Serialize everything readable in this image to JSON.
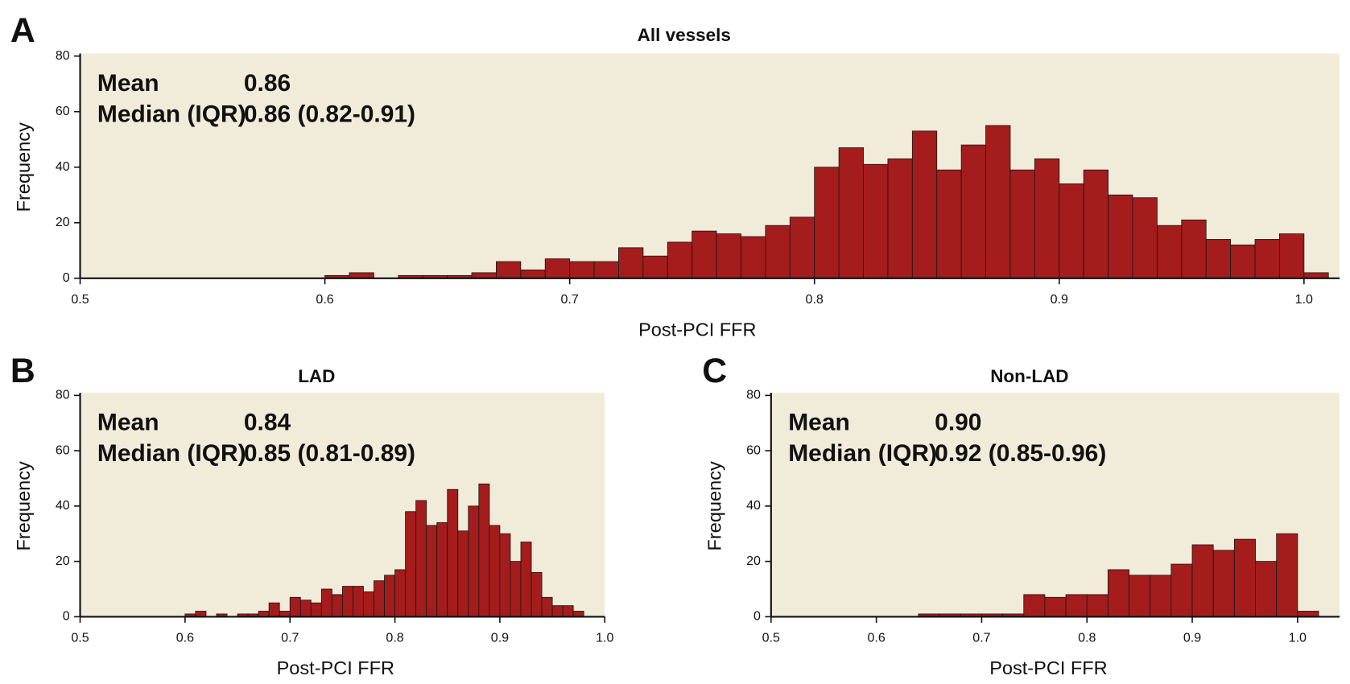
{
  "chart_data": [
    {
      "type": "histogram",
      "panel": "A",
      "title": "All vessels",
      "xlabel": "Post-PCI FFR",
      "ylabel": "Frequency",
      "stats": [
        [
          "Mean",
          "0.86"
        ],
        [
          "Median (IQR)",
          "0.86 (0.82-0.91)"
        ]
      ],
      "color": "#a51c1c",
      "background": "#f1ecd9",
      "bins": [
        0.6,
        0.61,
        0.62,
        0.63,
        0.64,
        0.65,
        0.66,
        0.67,
        0.68,
        0.69,
        0.7,
        0.71,
        0.72,
        0.73,
        0.74,
        0.75,
        0.76,
        0.77,
        0.78,
        0.79,
        0.8,
        0.81,
        0.82,
        0.83,
        0.84,
        0.85,
        0.86,
        0.87,
        0.88,
        0.89,
        0.9,
        0.91,
        0.92,
        0.93,
        0.94,
        0.95,
        0.96,
        0.97,
        0.98,
        0.99,
        1.0,
        1.01
      ],
      "values": [
        1,
        2,
        0,
        1,
        1,
        1,
        2,
        6,
        3,
        7,
        6,
        6,
        11,
        8,
        13,
        17,
        16,
        15,
        19,
        22,
        40,
        47,
        41,
        43,
        53,
        39,
        48,
        55,
        39,
        43,
        34,
        39,
        30,
        29,
        19,
        21,
        14,
        12,
        14,
        16,
        2
      ],
      "xlim": [
        0.5,
        1.01
      ],
      "xticks": [
        0.5,
        0.6,
        0.7,
        0.8,
        0.9,
        {
          "value": 1,
          "label": "1.0"
        }
      ],
      "ylim": [
        0,
        80
      ],
      "yticks": [
        0,
        20,
        40,
        60,
        80
      ]
    },
    {
      "type": "histogram",
      "panel": "B",
      "title": "LAD",
      "xlabel": "Post-PCI FFR",
      "ylabel": "Frequency",
      "stats": [
        [
          "Mean",
          "0.84"
        ],
        [
          "Median (IQR)",
          "0.85 (0.81-0.89)"
        ]
      ],
      "color": "#a51c1c",
      "background": "#f1ecd9",
      "bins": [
        0.6,
        0.61,
        0.62,
        0.63,
        0.64,
        0.65,
        0.66,
        0.67,
        0.68,
        0.69,
        0.7,
        0.71,
        0.72,
        0.73,
        0.74,
        0.75,
        0.76,
        0.77,
        0.78,
        0.79,
        0.8,
        0.81,
        0.82,
        0.83,
        0.84,
        0.85,
        0.86,
        0.87,
        0.88,
        0.89,
        0.9,
        0.91,
        0.92,
        0.93,
        0.94,
        0.95,
        0.96,
        0.97,
        0.98
      ],
      "values": [
        1,
        2,
        0,
        1,
        0,
        1,
        1,
        2,
        5,
        2,
        7,
        6,
        5,
        10,
        8,
        11,
        11,
        9,
        13,
        15,
        17,
        38,
        42,
        33,
        34,
        46,
        31,
        40,
        48,
        33,
        30,
        20,
        27,
        16,
        7,
        4,
        4,
        2
      ],
      "xlim": [
        0.5,
        1.0
      ],
      "xticks": [
        0.5,
        0.6,
        0.7,
        0.8,
        0.9,
        {
          "value": 1,
          "label": "1.0"
        }
      ],
      "ylim": [
        0,
        80
      ],
      "yticks": [
        0,
        20,
        40,
        60,
        80
      ]
    },
    {
      "type": "histogram",
      "panel": "C",
      "title": "Non-LAD",
      "xlabel": "Post-PCI FFR",
      "ylabel": "Frequency",
      "stats": [
        [
          "Mean",
          "0.90"
        ],
        [
          "Median (IQR)",
          "0.92 (0.85-0.96)"
        ]
      ],
      "color": "#a51c1c",
      "background": "#f1ecd9",
      "bins": [
        0.64,
        0.66,
        0.68,
        0.7,
        0.72,
        0.74,
        0.76,
        0.78,
        0.8,
        0.82,
        0.84,
        0.86,
        0.88,
        0.9,
        0.92,
        0.94,
        0.96,
        0.98,
        1.0,
        1.02
      ],
      "values": [
        1,
        1,
        1,
        1,
        1,
        8,
        7,
        8,
        8,
        17,
        15,
        15,
        19,
        26,
        24,
        28,
        20,
        30,
        2
      ],
      "xlim": [
        0.5,
        1.04
      ],
      "xticks": [
        0.5,
        0.6,
        0.7,
        0.8,
        0.9,
        {
          "value": 1,
          "label": "1.0"
        }
      ],
      "ylim": [
        0,
        80
      ],
      "yticks": [
        0,
        20,
        40,
        60,
        80
      ]
    }
  ]
}
